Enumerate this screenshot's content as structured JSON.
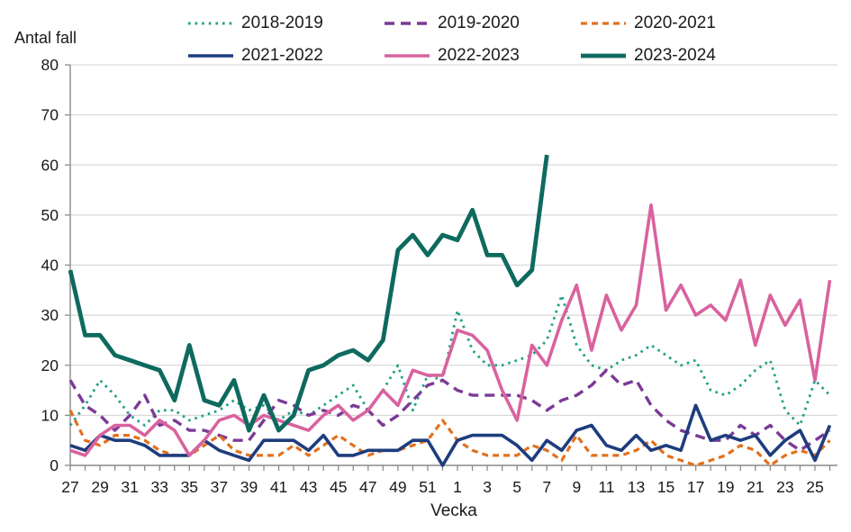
{
  "title": "Antal fall",
  "xlabel": "Vecka",
  "colors": {
    "grid": "#d9d9d9",
    "axis": "#8c8c8c",
    "text": "#1a1a1a",
    "background": "#ffffff"
  },
  "chart_data": {
    "type": "line",
    "title": "Antal fall",
    "xlabel": "Vecka",
    "ylabel": "",
    "ylim": [
      0,
      80
    ],
    "y_tick_step": 10,
    "x_tick_label_every": 2,
    "grid": "horizontal",
    "legend_position": "top",
    "x_labels": [
      "27",
      "28",
      "29",
      "30",
      "31",
      "32",
      "33",
      "34",
      "35",
      "36",
      "37",
      "38",
      "39",
      "40",
      "41",
      "42",
      "43",
      "44",
      "45",
      "46",
      "47",
      "48",
      "49",
      "50",
      "51",
      "52",
      "1",
      "2",
      "3",
      "4",
      "5",
      "6",
      "7",
      "8",
      "9",
      "10",
      "11",
      "12",
      "13",
      "14",
      "15",
      "16",
      "17",
      "18",
      "19",
      "20",
      "21",
      "22",
      "23",
      "24",
      "25",
      "26"
    ],
    "series": [
      {
        "name": "2018-2019",
        "color": "#21a185",
        "style": "dotted",
        "width": 2.8,
        "values": [
          8,
          12,
          17,
          14,
          10,
          8,
          11,
          11,
          9,
          10,
          11,
          13,
          11,
          12,
          9,
          11,
          10,
          12,
          14,
          16,
          11,
          15,
          20,
          11,
          18,
          17,
          31,
          23,
          20,
          20,
          21,
          22,
          25,
          34,
          24,
          20,
          19,
          21,
          22,
          24,
          22,
          20,
          21,
          15,
          14,
          16,
          19,
          21,
          11,
          8,
          17,
          14
        ]
      },
      {
        "name": "2019-2020",
        "color": "#7c3a96",
        "style": "dashed",
        "width": 3.4,
        "values": [
          17,
          12,
          10,
          7,
          10,
          14,
          8,
          9,
          7,
          7,
          6,
          5,
          5,
          9,
          13,
          12,
          10,
          11,
          10,
          12,
          11,
          8,
          10,
          13,
          16,
          17,
          15,
          14,
          14,
          14,
          14,
          13,
          11,
          13,
          14,
          16,
          19,
          16,
          17,
          12,
          9,
          7,
          6,
          5,
          5,
          8,
          6,
          8,
          5,
          3,
          5,
          7
        ]
      },
      {
        "name": "2020-2021",
        "color": "#e2711d",
        "style": "dashed-short",
        "width": 3.2,
        "values": [
          11,
          5,
          4,
          6,
          6,
          5,
          3,
          2,
          2,
          4,
          6,
          3,
          2,
          2,
          2,
          4,
          2,
          4,
          6,
          4,
          2,
          3,
          3,
          4,
          5,
          9,
          5,
          3,
          2,
          2,
          2,
          4,
          3,
          1,
          6,
          2,
          2,
          2,
          3,
          5,
          2,
          1,
          0,
          1,
          2,
          4,
          3,
          0,
          2,
          3,
          2,
          5
        ]
      },
      {
        "name": "2021-2022",
        "color": "#1e3d7e",
        "style": "solid",
        "width": 3.6,
        "values": [
          4,
          3,
          6,
          5,
          5,
          4,
          2,
          2,
          2,
          5,
          3,
          2,
          1,
          5,
          5,
          5,
          3,
          6,
          2,
          2,
          3,
          3,
          3,
          5,
          5,
          0,
          5,
          6,
          6,
          6,
          4,
          1,
          5,
          3,
          7,
          8,
          4,
          3,
          6,
          3,
          4,
          3,
          12,
          5,
          6,
          5,
          6,
          2,
          5,
          7,
          1,
          8
        ]
      },
      {
        "name": "2022-2023",
        "color": "#d9629f",
        "style": "solid",
        "width": 3.6,
        "values": [
          3,
          2,
          6,
          8,
          8,
          6,
          9,
          7,
          2,
          5,
          9,
          10,
          8,
          10,
          9,
          8,
          7,
          10,
          12,
          9,
          11,
          15,
          12,
          19,
          18,
          18,
          27,
          26,
          23,
          15,
          9,
          24,
          20,
          29,
          36,
          23,
          34,
          27,
          32,
          52,
          31,
          36,
          30,
          32,
          29,
          37,
          24,
          34,
          28,
          33,
          17,
          37
        ]
      },
      {
        "name": "2023-2024",
        "color": "#0e6a5e",
        "style": "solid",
        "width": 4.8,
        "values": [
          39,
          26,
          26,
          22,
          21,
          20,
          19,
          13,
          24,
          13,
          12,
          17,
          7,
          14,
          7,
          10,
          19,
          20,
          22,
          23,
          21,
          25,
          43,
          46,
          42,
          46,
          45,
          51,
          42,
          42,
          36,
          39,
          62
        ]
      }
    ]
  }
}
